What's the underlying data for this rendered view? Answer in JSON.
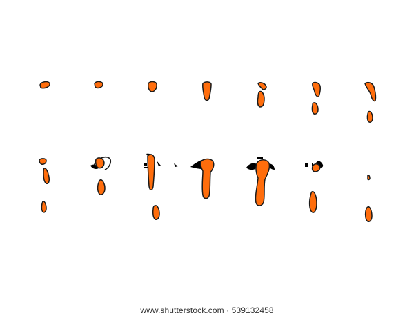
{
  "watermark": {
    "text": "www.shutterstock.com · 539132458"
  },
  "colors": {
    "background": "#ffffff",
    "paint": "#ff6d0c",
    "outline": "#1a1a1a",
    "splash": "#000000"
  },
  "sprite_sheet": {
    "rows": 2,
    "columns": 7,
    "subject": "orange paint drip animation frames"
  }
}
